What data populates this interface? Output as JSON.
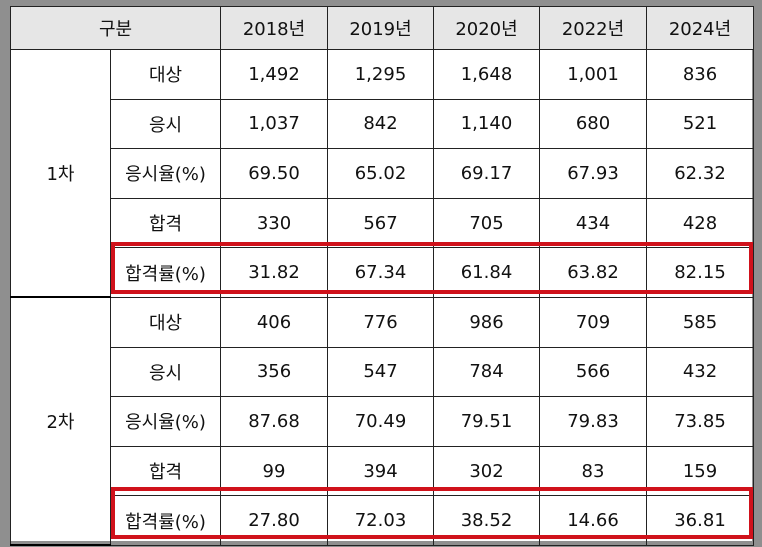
{
  "header": {
    "category": "구분",
    "years": [
      "2018년",
      "2019년",
      "2020년",
      "2022년",
      "2024년"
    ]
  },
  "groups": [
    {
      "label": "1차",
      "rows": [
        {
          "label": "대상",
          "values": [
            "1,492",
            "1,295",
            "1,648",
            "1,001",
            "836"
          ]
        },
        {
          "label": "응시",
          "values": [
            "1,037",
            "842",
            "1,140",
            "680",
            "521"
          ]
        },
        {
          "label": "응시율(%)",
          "values": [
            "69.50",
            "65.02",
            "69.17",
            "67.93",
            "62.32"
          ]
        },
        {
          "label": "합격",
          "values": [
            "330",
            "567",
            "705",
            "434",
            "428"
          ]
        },
        {
          "label": "합격률(%)",
          "values": [
            "31.82",
            "67.34",
            "61.84",
            "63.82",
            "82.15"
          ]
        }
      ]
    },
    {
      "label": "2차",
      "rows": [
        {
          "label": "대상",
          "values": [
            "406",
            "776",
            "986",
            "709",
            "585"
          ]
        },
        {
          "label": "응시",
          "values": [
            "356",
            "547",
            "784",
            "566",
            "432"
          ]
        },
        {
          "label": "응시율(%)",
          "values": [
            "87.68",
            "70.49",
            "79.51",
            "79.83",
            "73.85"
          ]
        },
        {
          "label": "합격",
          "values": [
            "99",
            "394",
            "302",
            "83",
            "159"
          ]
        },
        {
          "label": "합격률(%)",
          "values": [
            "27.80",
            "72.03",
            "38.52",
            "14.66",
            "36.81"
          ]
        }
      ]
    }
  ],
  "highlight_color": "#d0121b"
}
